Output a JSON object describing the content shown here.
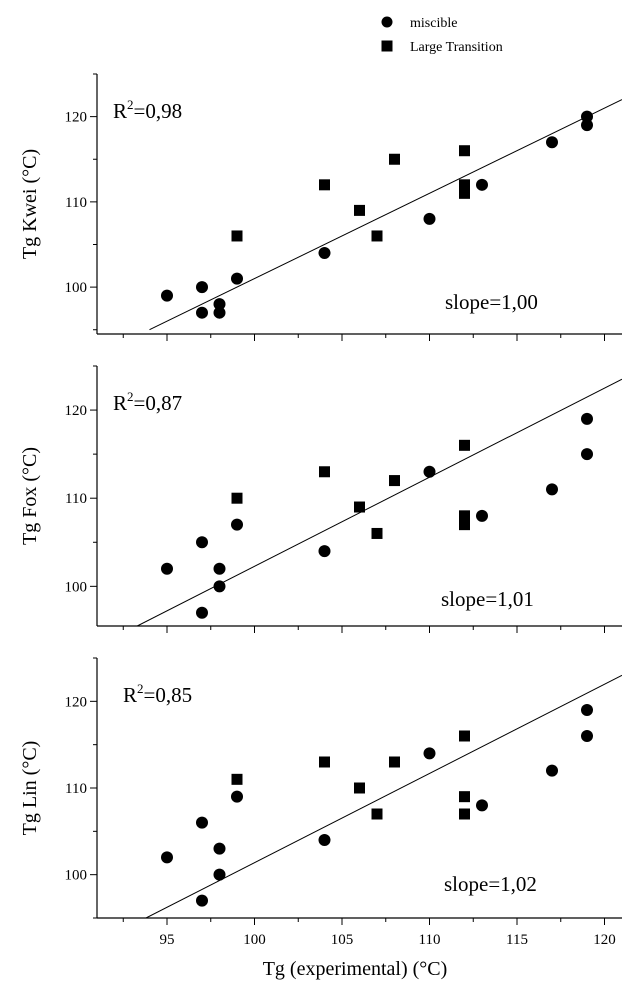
{
  "legend": {
    "items": [
      {
        "label": "miscible",
        "marker": "circle"
      },
      {
        "label": "Large Transition",
        "marker": "square"
      }
    ]
  },
  "x_axis": {
    "label": "Tg (experimental)  (°C)",
    "range": [
      91,
      121
    ],
    "ticks": [
      95,
      100,
      105,
      110,
      115,
      120
    ]
  },
  "chart_data": [
    {
      "type": "scatter",
      "ylabel": "Tg Kwei (°C)",
      "ylim": [
        94.5,
        125
      ],
      "yticks": [
        100,
        110,
        120
      ],
      "r2_prefix": "R",
      "r2_sup": "2",
      "r2_value": "=0,98",
      "slope_label": "slope=1,00",
      "fit_line": {
        "x": [
          94,
          121
        ],
        "y": [
          95,
          122
        ]
      },
      "series": [
        {
          "marker": "circle",
          "x": [
            95,
            97,
            97,
            98,
            98,
            99,
            104,
            110,
            113,
            117,
            119,
            119
          ],
          "y": [
            99,
            100,
            97,
            98,
            97,
            101,
            104,
            108,
            112,
            117,
            120,
            119
          ]
        },
        {
          "marker": "square",
          "x": [
            99,
            104,
            106,
            107,
            108,
            112,
            112,
            112
          ],
          "y": [
            106,
            112,
            109,
            106,
            115,
            116,
            112,
            111
          ]
        }
      ]
    },
    {
      "type": "scatter",
      "ylabel": "Tg Fox (°C)",
      "ylim": [
        95.5,
        125
      ],
      "yticks": [
        100,
        110,
        120
      ],
      "r2_prefix": "R",
      "r2_sup": "2",
      "r2_value": "=0,87",
      "slope_label": "slope=1,01",
      "fit_line": {
        "x": [
          93.3,
          121
        ],
        "y": [
          95.5,
          123.5
        ]
      },
      "series": [
        {
          "marker": "circle",
          "x": [
            95,
            97,
            97,
            98,
            98,
            99,
            104,
            110,
            113,
            117,
            119,
            119
          ],
          "y": [
            102,
            105,
            97,
            102,
            100,
            107,
            104,
            113,
            108,
            111,
            119,
            115
          ]
        },
        {
          "marker": "square",
          "x": [
            99,
            104,
            106,
            107,
            108,
            112,
            112,
            112
          ],
          "y": [
            110,
            113,
            109,
            106,
            112,
            116,
            108,
            107
          ]
        }
      ]
    },
    {
      "type": "scatter",
      "ylabel": "Tg Lin (°C)",
      "ylim": [
        95,
        125
      ],
      "yticks": [
        100,
        110,
        120
      ],
      "r2_prefix": "R",
      "r2_sup": "2",
      "r2_value": "=0,85",
      "slope_label": "slope=1,02",
      "fit_line": {
        "x": [
          93.8,
          121
        ],
        "y": [
          95,
          123
        ]
      },
      "series": [
        {
          "marker": "circle",
          "x": [
            95,
            97,
            97,
            98,
            98,
            99,
            104,
            110,
            113,
            117,
            119,
            119
          ],
          "y": [
            102,
            106,
            97,
            103,
            100,
            109,
            104,
            114,
            108,
            112,
            119,
            116
          ]
        },
        {
          "marker": "square",
          "x": [
            99,
            104,
            106,
            107,
            108,
            112,
            112,
            112
          ],
          "y": [
            111,
            113,
            110,
            107,
            113,
            116,
            109,
            107
          ]
        }
      ]
    }
  ]
}
